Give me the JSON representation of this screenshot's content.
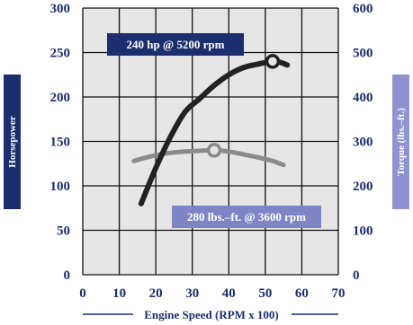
{
  "chart_data": {
    "type": "line",
    "xlabel": "Engine Speed (RPM x 100)",
    "ylabel_left": "Horsepower",
    "ylabel_right": "Torque (lbs.–ft.)",
    "xlim": [
      0,
      70
    ],
    "ylim_left": [
      0,
      300
    ],
    "ylim_right": [
      0,
      600
    ],
    "x_ticks": [
      "0",
      "10",
      "20",
      "30",
      "40",
      "50",
      "60",
      "70"
    ],
    "y_left_ticks": [
      "0",
      "50",
      "100",
      "150",
      "200",
      "250",
      "300"
    ],
    "y_right_ticks": [
      "0",
      "100",
      "200",
      "300",
      "400",
      "500",
      "600"
    ],
    "grid": true,
    "series": [
      {
        "name": "Horsepower",
        "axis": "left",
        "color": "#222222",
        "x": [
          16,
          20,
          24,
          28,
          32,
          36,
          40,
          44,
          48,
          52,
          54,
          56
        ],
        "y": [
          80,
          120,
          155,
          183,
          198,
          213,
          225,
          233,
          237,
          240,
          239,
          236
        ]
      },
      {
        "name": "Torque",
        "axis": "right",
        "color": "#8a8a8a",
        "x": [
          14,
          18,
          22,
          26,
          30,
          36,
          40,
          44,
          48,
          52,
          55
        ],
        "y": [
          256,
          265,
          272,
          276,
          278,
          280,
          277,
          271,
          264,
          256,
          247
        ]
      }
    ],
    "annotations": [
      {
        "text": "240 hp @ 5200 rpm",
        "x": 52,
        "y": 240,
        "axis": "left",
        "bg": "#1b2f6e"
      },
      {
        "text": "280 lbs.–ft. @ 3600 rpm",
        "x": 36,
        "y": 280,
        "axis": "right",
        "bg": "#7f84c4"
      }
    ]
  },
  "colors": {
    "navy": "#1b2f6e",
    "lavender": "#7f84c4",
    "plot_bg": "#e6e6e6",
    "grid": "#111111"
  }
}
